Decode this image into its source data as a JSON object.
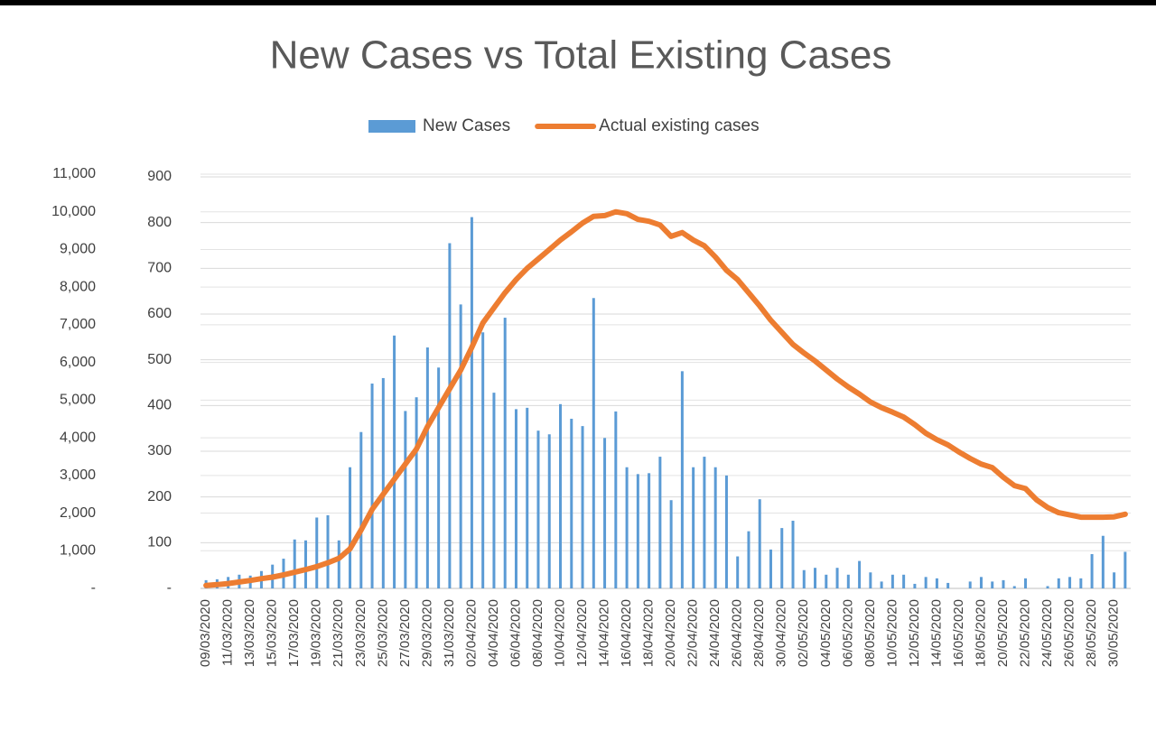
{
  "chart_data": {
    "type": "bar-line",
    "title": "New Cases vs Total Existing Cases",
    "categories": [
      "09/03/2020",
      null,
      "11/03/2020",
      null,
      "13/03/2020",
      null,
      "15/03/2020",
      null,
      "17/03/2020",
      null,
      "19/03/2020",
      null,
      "21/03/2020",
      null,
      "23/03/2020",
      null,
      "25/03/2020",
      null,
      "27/03/2020",
      null,
      "29/03/2020",
      null,
      "31/03/2020",
      null,
      "02/04/2020",
      null,
      "04/04/2020",
      null,
      "06/04/2020",
      null,
      "08/04/2020",
      null,
      "10/04/2020",
      null,
      "12/04/2020",
      null,
      "14/04/2020",
      null,
      "16/04/2020",
      null,
      "18/04/2020",
      null,
      "20/04/2020",
      null,
      "22/04/2020",
      null,
      "24/04/2020",
      null,
      "26/04/2020",
      null,
      "28/04/2020",
      null,
      "30/04/2020",
      null,
      "02/05/2020",
      null,
      "04/05/2020",
      null,
      "06/05/2020",
      null,
      "08/05/2020",
      null,
      "10/05/2020",
      null,
      "12/05/2020",
      null,
      "14/05/2020",
      null,
      "16/05/2020",
      null,
      "18/05/2020",
      null,
      "20/05/2020",
      null,
      "22/05/2020",
      null,
      "24/05/2020",
      null,
      "26/05/2020",
      null,
      "28/05/2020",
      null,
      "30/05/2020",
      null
    ],
    "series": [
      {
        "name": "New Cases",
        "type": "bar",
        "color": "#5b9bd5",
        "values": [
          18,
          20,
          25,
          30,
          28,
          38,
          52,
          65,
          107,
          105,
          155,
          160,
          105,
          265,
          342,
          448,
          460,
          553,
          388,
          418,
          527,
          483,
          755,
          621,
          812,
          560,
          428,
          592,
          392,
          395,
          345,
          337,
          403,
          371,
          355,
          635,
          329,
          387,
          265,
          250,
          252,
          288,
          193,
          475,
          265,
          288,
          265,
          247,
          70,
          125,
          195,
          85,
          132,
          148,
          40,
          45,
          30,
          45,
          30,
          60,
          35,
          15,
          30,
          30,
          10,
          25,
          22,
          12,
          0,
          15,
          25,
          15,
          18,
          5,
          22,
          0,
          5,
          22,
          25,
          22,
          75,
          115,
          35,
          80
        ]
      },
      {
        "name": "Actual existing cases",
        "type": "line",
        "axis": "y2",
        "color": "#ed7d31",
        "values": [
          80,
          100,
          130,
          170,
          210,
          260,
          300,
          360,
          430,
          500,
          580,
          680,
          800,
          1050,
          1550,
          2100,
          2500,
          2900,
          3300,
          3700,
          4300,
          4800,
          5300,
          5800,
          6400,
          7050,
          7450,
          7850,
          8200,
          8500,
          8750,
          9000,
          9250,
          9470,
          9700,
          9880,
          9900,
          10000,
          9950,
          9800,
          9750,
          9650,
          9350,
          9450,
          9250,
          9100,
          8800,
          8450,
          8200,
          7850,
          7500,
          7120,
          6800,
          6480,
          6250,
          6040,
          5800,
          5560,
          5350,
          5160,
          4950,
          4800,
          4680,
          4550,
          4350,
          4120,
          3950,
          3810,
          3620,
          3450,
          3300,
          3210,
          2950,
          2730,
          2650,
          2350,
          2150,
          2010,
          1950,
          1890,
          1890,
          1890,
          1900,
          1970
        ]
      }
    ],
    "ylim": [
      0,
      900
    ],
    "yticks": [
      {
        "value": 0,
        "label": "-"
      },
      100,
      200,
      300,
      400,
      500,
      600,
      700,
      800,
      900
    ],
    "y2lim": [
      0,
      11000
    ],
    "y2ticks": [
      {
        "value": 0,
        "label": "-"
      },
      {
        "value": 1000,
        "label": "1,000"
      },
      {
        "value": 2000,
        "label": "2,000"
      },
      {
        "value": 3000,
        "label": "3,000"
      },
      {
        "value": 4000,
        "label": "4,000"
      },
      {
        "value": 5000,
        "label": "5,000"
      },
      {
        "value": 6000,
        "label": "6,000"
      },
      {
        "value": 7000,
        "label": "7,000"
      },
      {
        "value": 8000,
        "label": "8,000"
      },
      {
        "value": 9000,
        "label": "9,000"
      },
      {
        "value": 10000,
        "label": "10,000"
      },
      {
        "value": 11000,
        "label": "11,000"
      }
    ],
    "grid": true,
    "legend": "top"
  }
}
